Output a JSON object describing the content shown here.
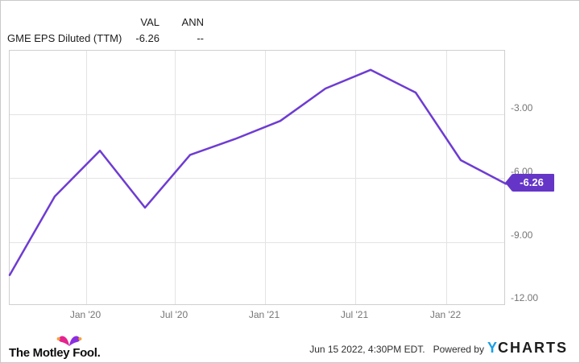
{
  "header": {
    "val_column_label": "VAL",
    "ann_column_label": "ANN",
    "series_label": "GME EPS Diluted (TTM)",
    "val_value": "-6.26",
    "ann_value": "--"
  },
  "chart_data": {
    "type": "line",
    "title": "GME EPS Diluted (TTM)",
    "series_name": "GME EPS Diluted (TTM)",
    "x": [
      "Aug '19",
      "Nov '19",
      "Feb '20",
      "May '20",
      "Aug '20",
      "Nov '20",
      "Feb '21",
      "May '21",
      "Aug '21",
      "Nov '21",
      "Feb '22",
      "May '22"
    ],
    "values": [
      -10.55,
      -6.85,
      -4.7,
      -7.38,
      -4.9,
      -4.15,
      -3.3,
      -1.78,
      -0.9,
      -1.97,
      -5.15,
      -6.26
    ],
    "x_tick_labels": [
      "Jan '20",
      "Jul '20",
      "Jan '21",
      "Jul '21",
      "Jan '22"
    ],
    "y_tick_labels": [
      "-3.00",
      "-6.00",
      "-9.00",
      "-12.00"
    ],
    "ylim": [
      -12,
      0
    ],
    "grid": true,
    "legend_position": "top-left-table",
    "last_value_label": "-6.26"
  },
  "colors": {
    "line": "#6e3cd2",
    "value_tag_bg": "#6535c8",
    "ycharts_blue": "#189fe8",
    "fool_pink": "#e5238e",
    "fool_purple": "#8c2ee0",
    "fool_bell_orange": "#f6a335",
    "axis_label": "#757575"
  },
  "footer": {
    "fool_logo_text": "The Motley Fool.",
    "timestamp": "Jun 15 2022, 4:30PM EDT.",
    "powered_by": "Powered by",
    "ycharts_y": "Y",
    "ycharts_rest": "CHARTS"
  }
}
